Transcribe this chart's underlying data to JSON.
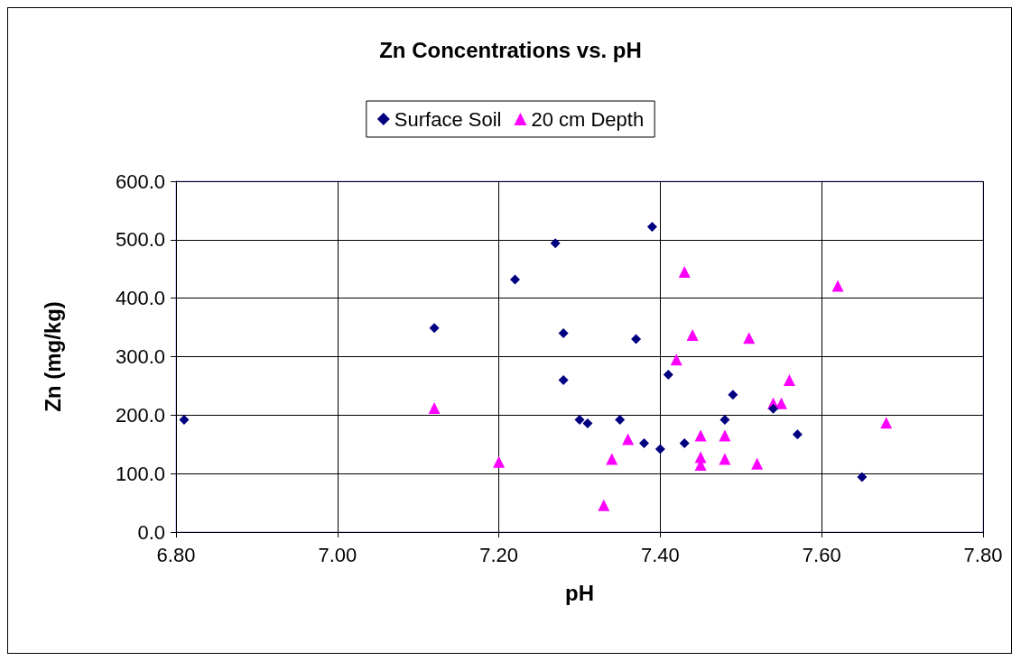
{
  "chart_data": {
    "type": "scatter",
    "title": "Zn Concentrations vs. pH",
    "xlabel": "pH",
    "ylabel": "Zn (mg/kg)",
    "series": [
      {
        "name": "Surface Soil",
        "color": "#000080",
        "marker": "diamond",
        "x": [
          6.81,
          7.12,
          7.22,
          7.27,
          7.28,
          7.28,
          7.39,
          7.37,
          7.41,
          7.49,
          7.54,
          7.3,
          7.31,
          7.35,
          7.48,
          7.38,
          7.4,
          7.43,
          7.57,
          7.65
        ],
        "values": [
          192,
          349,
          432,
          494,
          340,
          260,
          522,
          330,
          269,
          235,
          211,
          192,
          186,
          192,
          192,
          152,
          142,
          152,
          167,
          94
        ]
      },
      {
        "name": "20 cm Depth",
        "color": "#ff00ff",
        "marker": "triangle",
        "x": [
          7.12,
          7.2,
          7.43,
          7.62,
          7.44,
          7.51,
          7.42,
          7.56,
          7.54,
          7.55,
          7.68,
          7.36,
          7.45,
          7.48,
          7.34,
          7.45,
          7.45,
          7.48,
          7.52,
          7.33
        ],
        "values": [
          212,
          120,
          445,
          421,
          337,
          332,
          295,
          260,
          220,
          220,
          187,
          159,
          165,
          165,
          125,
          128,
          115,
          125,
          117,
          46
        ]
      }
    ],
    "xlim": [
      6.8,
      7.8
    ],
    "xticks": [
      {
        "value": 6.8,
        "label": "6.80"
      },
      {
        "value": 7.0,
        "label": "7.00"
      },
      {
        "value": 7.2,
        "label": "7.20"
      },
      {
        "value": 7.4,
        "label": "7.40"
      },
      {
        "value": 7.6,
        "label": "7.60"
      },
      {
        "value": 7.8,
        "label": "7.80"
      }
    ],
    "ylim": [
      0,
      600
    ],
    "yticks": [
      {
        "value": 0,
        "label": "0.0"
      },
      {
        "value": 100,
        "label": "100.0"
      },
      {
        "value": 200,
        "label": "200.0"
      },
      {
        "value": 300,
        "label": "300.0"
      },
      {
        "value": 400,
        "label": "400.0"
      },
      {
        "value": 500,
        "label": "500.0"
      },
      {
        "value": 600,
        "label": "600.0"
      }
    ],
    "grid": true,
    "legend": "top"
  }
}
